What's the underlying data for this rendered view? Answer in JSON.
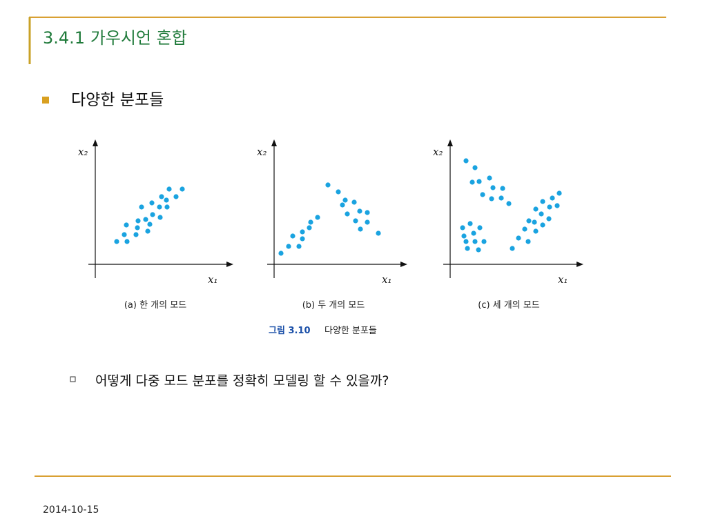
{
  "header": {
    "title": "3.4.1 가우시언 혼합"
  },
  "bullets": [
    {
      "text": "다양한 분포들"
    }
  ],
  "figure": {
    "panels": [
      {
        "y_label": "x₂",
        "x_label": "x₁",
        "caption": "(a) 한 개의 모드"
      },
      {
        "y_label": "x₂",
        "x_label": "x₁",
        "caption": "(b) 두 개의 모드"
      },
      {
        "y_label": "x₂",
        "x_label": "x₁",
        "caption": "(c) 세 개의 모드"
      }
    ],
    "caption_label": "그림 3.10",
    "caption_text": "다양한 분포들"
  },
  "sub_bullets": [
    {
      "text": "어떻게 다중 모드 분포를 정확히 모델링 할 수 있을까?"
    }
  ],
  "footer": {
    "date": "2014-10-15"
  }
}
